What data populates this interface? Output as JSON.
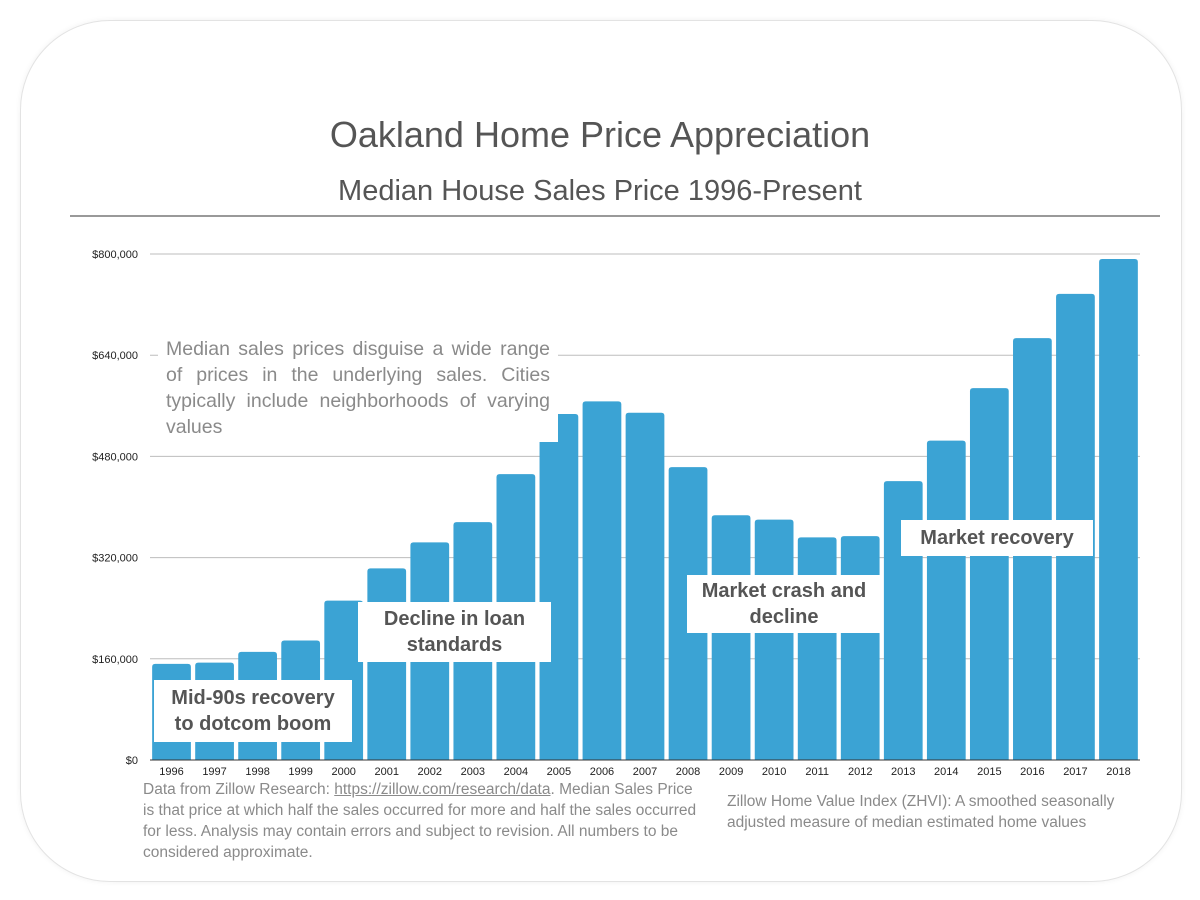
{
  "chart_data": {
    "type": "bar",
    "title": "Oakland Home Price Appreciation",
    "subtitle": "Median House Sales Price 1996-Present",
    "categories": [
      "1996",
      "1997",
      "1998",
      "1999",
      "2000",
      "2001",
      "2002",
      "2003",
      "2004",
      "2005",
      "2006",
      "2007",
      "2008",
      "2009",
      "2010",
      "2011",
      "2012",
      "2013",
      "2014",
      "2015",
      "2016",
      "2017",
      "2018"
    ],
    "values": [
      152000,
      154000,
      171000,
      189000,
      252000,
      303000,
      344000,
      376000,
      452000,
      547000,
      567000,
      549000,
      463000,
      387000,
      380000,
      352000,
      354000,
      441000,
      505000,
      588000,
      667000,
      737000,
      792000
    ],
    "ylim": [
      0,
      800000
    ],
    "yticks": [
      0,
      160000,
      320000,
      480000,
      640000,
      800000
    ],
    "ytick_labels": [
      "$0",
      "$160,000",
      "$320,000",
      "$480,000",
      "$640,000",
      "$800,000"
    ],
    "grid": true,
    "bar_color": "#3ba3d4",
    "annotations": [
      {
        "id": "mid90s",
        "text": "Mid-90s recovery\nto dotcom boom"
      },
      {
        "id": "decline",
        "text": "Decline in loan\nstandards"
      },
      {
        "id": "crash",
        "text": "Market crash and\ndecline"
      },
      {
        "id": "recovery",
        "text": "Market recovery"
      }
    ]
  },
  "note": "Median sales prices disguise a wide range of prices in the underlying sales. Cities typically include neighborhoods of varying values",
  "source": {
    "prefix": "Data from Zillow Research: ",
    "link": "https://zillow.com/research/data",
    "suffix": ". Median Sales Price is that price at which half the sales occurred for more and half the sales occurred for less.  Analysis may contain errors and subject to revision.  All numbers to be considered approximate."
  },
  "zhvi_note": "Zillow Home Value Index (ZHVI): A smoothed seasonally adjusted measure of median estimated home values"
}
